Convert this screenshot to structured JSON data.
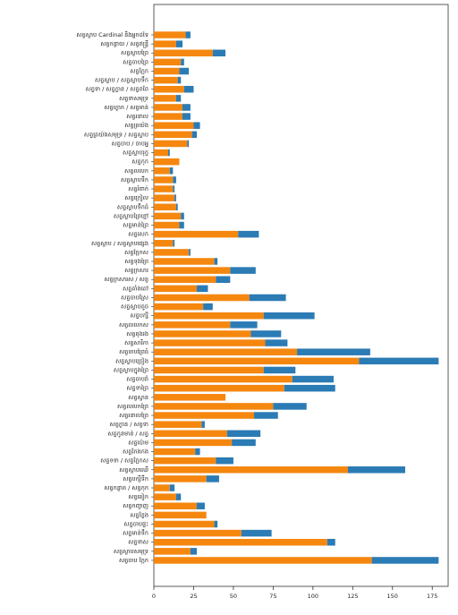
{
  "chart_data": {
    "type": "barh_stacked",
    "categories": [
      "សត្វស្លាប Cardinal និងអ្នកដទៃ",
      "សត្វកន្ធាយ / សត្វឥន្ទ្រី",
      "សត្វស្លាបព្រៃ",
      "សត្វចាបព្រៃ",
      "សត្វក្អែក",
      "សត្វស្លាប / សត្វស្លាបទឹក",
      "សត្វទា / សត្វក្ងាន / សត្វពពែ",
      "សត្វទាសមុទ្រ",
      "សត្វក្ងោក / សត្វមាន់",
      "សត្វរនាល",
      "សត្វត្រយ៉ង",
      "សត្វត្រយ៉ងសមុទ្រ / សត្វស្លាប",
      "សត្វចាប / ចាបអ្ន",
      "សត្វស្លាបរុក្ខ",
      "សត្វកុក",
      "សត្វលលក",
      "សត្វស្លាបទឹក",
      "សត្វរំពាក់",
      "សត្វក្រៀល",
      "សត្វស្លាបទឹកធំ",
      "សត្វស្លាបព្រៃខ្មៅ",
      "សត្វមាន់ព្រៃ",
      "សត្វសេក",
      "សត្វស្លាប / សត្វស្លាបផ្សេង",
      "សត្វក្អែកស",
      "សត្វទុងព្រៃ",
      "សត្វក្រសារ",
      "សត្វក្រសារស / សត្វ",
      "សត្វតាំងតៅ",
      "សត្វចាបស្រែ",
      "សត្វស្លាបតូច",
      "សត្វបក្សី",
      "សត្វលលកស",
      "សត្វតុងរង",
      "សត្វសារិកា",
      "សត្វចាបព្រៃធំ",
      "សត្វស្លាបច្រៀង",
      "សត្វស្លាបក្នុងព្រៃ",
      "សត្វចាបរាំ",
      "សត្វទាព្រៃ",
      "សត្វស្វាន",
      "សត្វលលក​ព្រៃ",
      "សត្វរនាលព្រៃ",
      "សត្វក្ងាន / សត្វទា",
      "សត្វកូនមាន់ / សត្វ",
      "សត្វប៉ោម",
      "សត្វកែងកង",
      "សត្វទទា / សត្វក្អែកស",
      "សត្វស្លាបឈើ",
      "សត្វបក្សីទឹក",
      "សត្វកន្លាត / សត្វកុក",
      "សត្វគៀក",
      "សត្វកញ្ចាញ",
      "សត្វខ្លែង",
      "សត្វចាបផ្ទះ",
      "សត្វមាន់ទឹក",
      "សត្វទាស",
      "សត្វស្លាបសមុទ្រ",
      "សត្វចាប ក្អែក"
    ],
    "series": [
      {
        "color": "#f5870f",
        "values": [
          20,
          14,
          37,
          17,
          16,
          15,
          19,
          14,
          18,
          18,
          25,
          24,
          21,
          9,
          16,
          10,
          12,
          12,
          13,
          14,
          17,
          16,
          53,
          12,
          22,
          38,
          48,
          39,
          27,
          60,
          31,
          69,
          48,
          61,
          70,
          90,
          129,
          69,
          87,
          82,
          45,
          75,
          63,
          30,
          46,
          49,
          26,
          39,
          122,
          33,
          10,
          14,
          27,
          33,
          38,
          55,
          109,
          23,
          137
        ]
      },
      {
        "color": "#2b7bb5",
        "values": [
          3,
          4,
          8,
          2,
          6,
          2,
          6,
          3,
          5,
          5,
          4,
          3,
          1,
          1,
          0,
          2,
          2,
          1,
          1,
          1,
          2,
          3,
          13,
          1,
          1,
          2,
          16,
          9,
          7,
          23,
          6,
          32,
          17,
          19,
          14,
          46,
          50,
          20,
          26,
          32,
          0,
          21,
          15,
          2,
          21,
          15,
          3,
          11,
          36,
          8,
          3,
          3,
          5,
          0,
          2,
          19,
          5,
          4,
          42
        ]
      }
    ],
    "xlim": [
      0,
      185
    ],
    "xticks": [
      0,
      25,
      50,
      75,
      100,
      125,
      150,
      175
    ]
  }
}
